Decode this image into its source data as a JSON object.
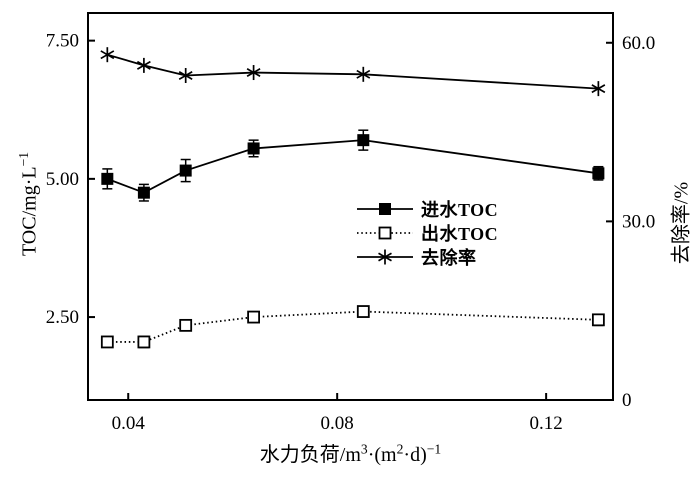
{
  "chart_data": {
    "type": "line",
    "title": "",
    "xlabel": "水力负荷/m³·(m²·d)⁻¹",
    "ylabel_left": "TOC/mg·L⁻¹",
    "ylabel_right": "去除率/%",
    "background_color": "#ffffff",
    "foreground_color": "#000000",
    "grid": false,
    "legend_position": "center-right-inside",
    "x": [
      0.036,
      0.043,
      0.051,
      0.064,
      0.085,
      0.13
    ],
    "series": [
      {
        "name": "进水TOC",
        "axis": "left",
        "marker": "filled-square",
        "line": "solid",
        "values": [
          5.0,
          4.75,
          5.15,
          5.55,
          5.7,
          5.1
        ],
        "errors": [
          0.18,
          0.15,
          0.2,
          0.15,
          0.18,
          0.12
        ]
      },
      {
        "name": "出水TOC",
        "axis": "left",
        "marker": "open-square",
        "line": "dotted",
        "values": [
          2.05,
          2.05,
          2.35,
          2.5,
          2.6,
          2.45
        ],
        "errors": [
          0,
          0.1,
          0,
          0,
          0,
          0.1
        ]
      },
      {
        "name": "去除率",
        "axis": "right",
        "marker": "asterisk",
        "line": "solid",
        "values": [
          58.0,
          56.2,
          54.5,
          55.0,
          54.7,
          52.3
        ],
        "errors": [
          0,
          0,
          0,
          0,
          0,
          0
        ]
      }
    ],
    "x_axis": {
      "min": 0.0323,
      "max": 0.1328,
      "tick_values": [
        0.04,
        0.08,
        0.12
      ],
      "tick_labels": [
        "0.04",
        "0.08",
        "0.12"
      ]
    },
    "left_axis": {
      "min": 1.0,
      "max": 8.0,
      "tick_values": [
        2.5,
        5.0,
        7.5
      ],
      "tick_labels": [
        "2.50",
        "5.00",
        "7.50"
      ]
    },
    "right_axis": {
      "min": 0,
      "max": 65,
      "tick_values": [
        0,
        30,
        60
      ],
      "tick_labels": [
        "0",
        "30.0",
        "60.0"
      ]
    }
  },
  "labels": {
    "x_segments": [
      {
        "t": "水力负荷/m"
      },
      {
        "t": "3",
        "sup": true
      },
      {
        "t": "·(m"
      },
      {
        "t": "2",
        "sup": true
      },
      {
        "t": "·d)"
      },
      {
        "t": "−1",
        "sup": true
      }
    ],
    "y_left_segments": [
      {
        "t": "TOC/mg·L"
      },
      {
        "t": "−1",
        "sup": true
      }
    ],
    "y_right_segments": [
      {
        "t": "去除率/%"
      }
    ]
  },
  "legend": {
    "items": [
      {
        "label": "进水TOC"
      },
      {
        "label": "出水TOC"
      },
      {
        "label": "去除率"
      }
    ]
  }
}
